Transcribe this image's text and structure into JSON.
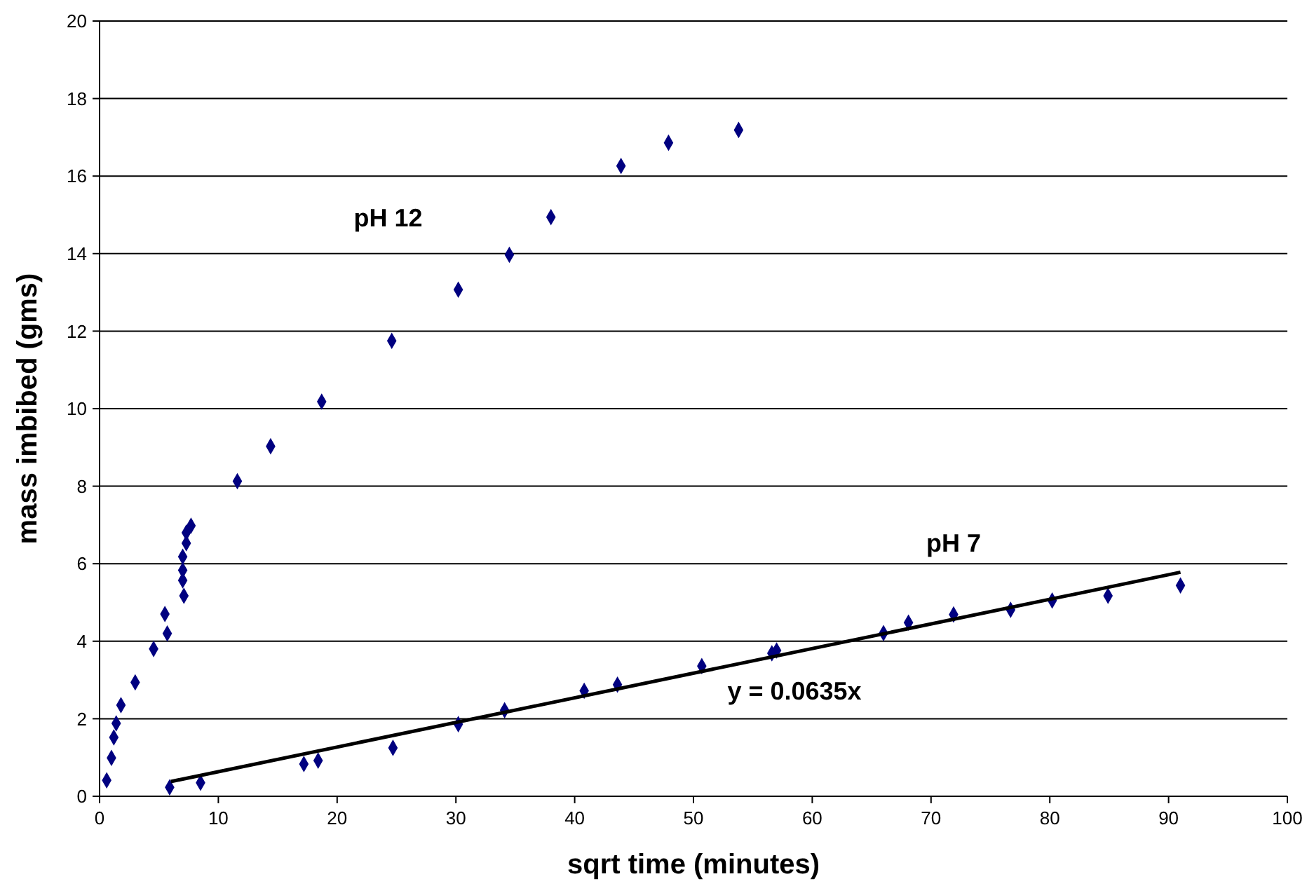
{
  "chart_data": {
    "type": "scatter",
    "xlabel": "sqrt time (minutes)",
    "ylabel": "mass imbibed (gms)",
    "xlim": [
      0,
      100
    ],
    "xticks": [
      0,
      10,
      20,
      30,
      40,
      50,
      60,
      70,
      80,
      90,
      100
    ],
    "ylim": [
      0,
      20
    ],
    "yticks": [
      0,
      2,
      4,
      6,
      8,
      10,
      12,
      14,
      16,
      18,
      20
    ],
    "grid": "y",
    "marker": "diamond",
    "series": [
      {
        "name": "pH 12",
        "color": "#000080",
        "x": [
          0.6,
          1.0,
          1.2,
          1.4,
          1.8,
          3.0,
          4.55,
          5.5,
          5.7,
          7.0,
          7.0,
          7.0,
          7.1,
          7.3,
          7.3,
          7.7,
          11.6,
          14.4,
          18.7,
          24.6,
          30.2,
          34.5,
          38.0,
          43.9,
          47.9,
          53.8
        ],
        "values": [
          0.41,
          0.99,
          1.52,
          1.88,
          2.35,
          2.94,
          3.8,
          4.7,
          4.2,
          5.57,
          5.83,
          6.18,
          5.17,
          6.53,
          6.8,
          6.98,
          8.13,
          9.03,
          10.18,
          11.75,
          13.07,
          13.97,
          14.94,
          16.26,
          16.86,
          17.19
        ]
      },
      {
        "name": "pH 7",
        "color": "#000080",
        "x": [
          5.9,
          8.5,
          17.2,
          18.4,
          24.7,
          30.2,
          34.1,
          40.8,
          43.6,
          50.7,
          56.6,
          57.0,
          66.0,
          68.1,
          71.9,
          76.7,
          80.2,
          84.9,
          91.0
        ],
        "values": [
          0.23,
          0.35,
          0.83,
          0.92,
          1.25,
          1.86,
          2.22,
          2.72,
          2.88,
          3.36,
          3.69,
          3.76,
          4.21,
          4.48,
          4.69,
          4.81,
          5.05,
          5.17,
          5.44
        ]
      },
      {
        "type": "line",
        "color": "#000000",
        "marker": "none",
        "x": [
          6,
          91
        ],
        "values": [
          0.38,
          5.78
        ]
      }
    ],
    "annotations": [
      "y = 0.0635x"
    ]
  }
}
